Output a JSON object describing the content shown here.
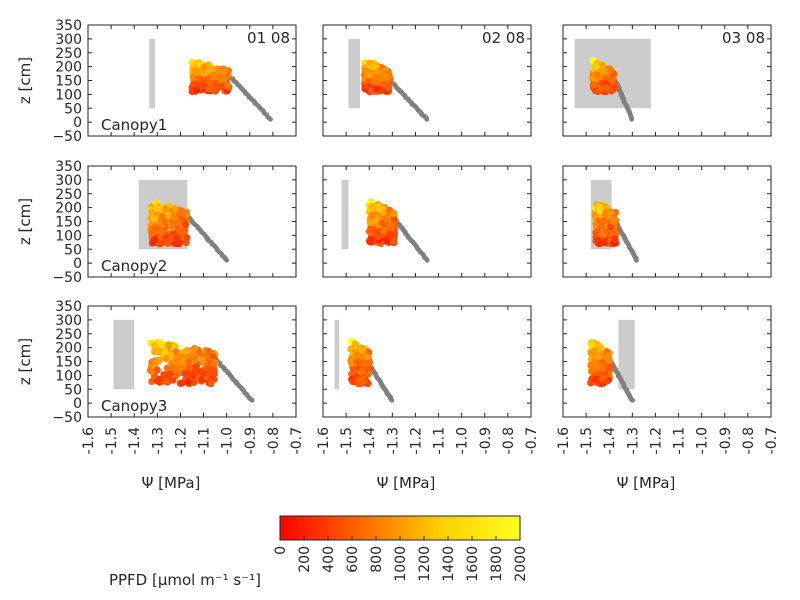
{
  "chart_data": {
    "type": "scatter",
    "x_axis": {
      "label": "Ψ [MPa]",
      "lim": [
        -1.6,
        -0.7
      ],
      "ticks": [
        "-1.6",
        "-1.5",
        "-1.4",
        "-1.3",
        "-1.2",
        "-1.1",
        "-1.0",
        "-0.9",
        "-0.8",
        "-0.7"
      ],
      "values": [
        -1.6,
        -1.5,
        -1.4,
        -1.3,
        -1.2,
        -1.1,
        -1.0,
        -0.9,
        -0.8,
        -0.7
      ]
    },
    "y_axis": {
      "label": "z [cm]",
      "lim": [
        -50,
        350
      ],
      "ticks": [
        "−50",
        "0",
        "50",
        "100",
        "150",
        "200",
        "250",
        "300",
        "350"
      ],
      "values": [
        -50,
        0,
        50,
        100,
        150,
        200,
        250,
        300,
        350
      ]
    },
    "colorbar": {
      "label": "PPFD [μmol m⁻¹ s⁻¹]",
      "lim": [
        0,
        2000
      ],
      "ticks": [
        "0",
        "200",
        "400",
        "600",
        "800",
        "1000",
        "1200",
        "1400",
        "1600",
        "1800",
        "2000"
      ],
      "values": [
        0,
        200,
        400,
        600,
        800,
        1000,
        1200,
        1400,
        1600,
        1800,
        2000
      ],
      "colors": [
        "#ff0000",
        "#ff6600",
        "#ffcc00",
        "#ffff22"
      ]
    },
    "row_labels": [
      "Canopy1",
      "Canopy2",
      "Canopy3"
    ],
    "col_labels": [
      "01 08",
      "02 08",
      "03 08"
    ],
    "stem_color": "#808080",
    "box_color": "#cccccc",
    "panels": [
      {
        "row": 0,
        "col": 0,
        "box": [
          -1.335,
          -1.31,
          50,
          300
        ],
        "stem": [
          [
            -0.98,
            160
          ],
          [
            -0.81,
            10
          ]
        ],
        "leaf_x": [
          -1.15,
          -0.99
        ],
        "leaf_z": [
          110,
          225
        ]
      },
      {
        "row": 0,
        "col": 1,
        "box": [
          -1.49,
          -1.44,
          50,
          300
        ],
        "stem": [
          [
            -1.31,
            150
          ],
          [
            -1.15,
            10
          ]
        ],
        "leaf_x": [
          -1.42,
          -1.31
        ],
        "leaf_z": [
          110,
          225
        ]
      },
      {
        "row": 0,
        "col": 2,
        "box": [
          -1.55,
          -1.22,
          50,
          300
        ],
        "stem": [
          [
            -1.38,
            160
          ],
          [
            -1.3,
            10
          ]
        ],
        "leaf_x": [
          -1.47,
          -1.38
        ],
        "leaf_z": [
          110,
          225
        ]
      },
      {
        "row": 1,
        "col": 0,
        "box": [
          -1.38,
          -1.17,
          50,
          300
        ],
        "stem": [
          [
            -1.17,
            170
          ],
          [
            -1.0,
            10
          ]
        ],
        "leaf_x": [
          -1.33,
          -1.17
        ],
        "leaf_z": [
          70,
          225
        ]
      },
      {
        "row": 1,
        "col": 1,
        "box": [
          -1.52,
          -1.49,
          50,
          300
        ],
        "stem": [
          [
            -1.3,
            170
          ],
          [
            -1.15,
            10
          ]
        ],
        "leaf_x": [
          -1.4,
          -1.29
        ],
        "leaf_z": [
          70,
          225
        ]
      },
      {
        "row": 1,
        "col": 2,
        "box": [
          -1.48,
          -1.39,
          50,
          300
        ],
        "stem": [
          [
            -1.38,
            160
          ],
          [
            -1.28,
            10
          ]
        ],
        "leaf_x": [
          -1.46,
          -1.37
        ],
        "leaf_z": [
          70,
          225
        ]
      },
      {
        "row": 2,
        "col": 0,
        "box": [
          -1.49,
          -1.4,
          50,
          300
        ],
        "stem": [
          [
            -1.06,
            170
          ],
          [
            -0.89,
            10
          ]
        ],
        "leaf_x": [
          -1.33,
          -1.05
        ],
        "leaf_z": [
          70,
          225
        ]
      },
      {
        "row": 2,
        "col": 1,
        "box": [
          -1.55,
          -1.53,
          50,
          300
        ],
        "stem": [
          [
            -1.41,
            150
          ],
          [
            -1.3,
            10
          ]
        ],
        "leaf_x": [
          -1.48,
          -1.4
        ],
        "leaf_z": [
          70,
          225
        ]
      },
      {
        "row": 2,
        "col": 2,
        "box": [
          -1.36,
          -1.29,
          50,
          300
        ],
        "stem": [
          [
            -1.4,
            160
          ],
          [
            -1.3,
            10
          ]
        ],
        "leaf_x": [
          -1.48,
          -1.4
        ],
        "leaf_z": [
          70,
          225
        ]
      }
    ]
  }
}
